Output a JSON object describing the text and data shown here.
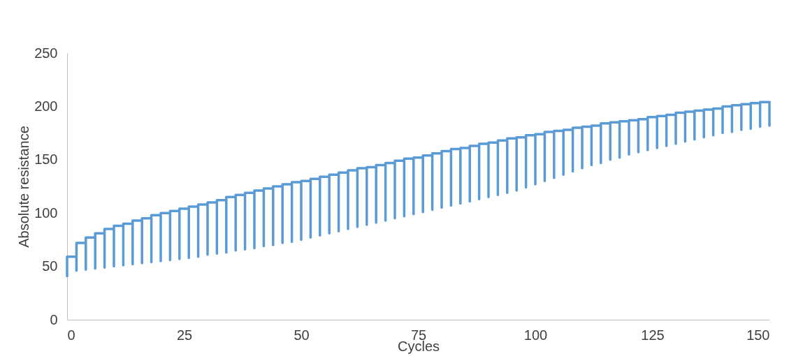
{
  "chart_data": {
    "type": "step",
    "xlabel": "Cycles",
    "ylabel": "Absolute resistance",
    "xlim": [
      0,
      150
    ],
    "xticks": [
      0,
      25,
      50,
      75,
      100,
      125,
      150
    ],
    "ylim": [
      0,
      250
    ],
    "yticks": [
      0,
      50,
      100,
      150,
      200,
      250
    ],
    "grid": false,
    "marker": "none",
    "line_style": "solid",
    "series": [
      {
        "color": "#5b9bd5",
        "x": [
          0,
          0,
          2,
          2,
          4,
          4,
          6,
          6,
          8,
          8,
          10,
          10,
          12,
          12,
          14,
          14,
          16,
          16,
          18,
          18,
          20,
          20,
          22,
          22,
          24,
          24,
          26,
          26,
          28,
          28,
          30,
          30,
          32,
          32,
          34,
          34,
          36,
          36,
          38,
          38,
          40,
          40,
          42,
          42,
          44,
          44,
          46,
          46,
          48,
          48,
          50,
          50,
          52,
          52,
          54,
          54,
          56,
          56,
          58,
          58,
          60,
          60,
          62,
          62,
          64,
          64,
          66,
          66,
          68,
          68,
          70,
          70,
          72,
          72,
          74,
          74,
          76,
          76,
          78,
          78,
          80,
          80,
          82,
          82,
          84,
          84,
          86,
          86,
          88,
          88,
          90,
          90,
          92,
          92,
          94,
          94,
          96,
          96,
          98,
          98,
          100,
          100,
          102,
          102,
          104,
          104,
          106,
          106,
          108,
          108,
          110,
          110,
          112,
          112,
          114,
          114,
          116,
          116,
          118,
          118,
          120,
          120,
          122,
          122,
          124,
          124,
          126,
          126,
          128,
          128,
          130,
          130,
          132,
          132,
          134,
          134,
          136,
          136,
          138,
          138,
          140,
          140,
          142,
          142,
          144,
          144,
          146,
          146,
          148,
          148,
          150,
          150
        ],
        "values": [
          40,
          59,
          46,
          72,
          47,
          77,
          48,
          81,
          49,
          85,
          50,
          88,
          51,
          90,
          52,
          93,
          53,
          95,
          54,
          98,
          55,
          100,
          56,
          102,
          57,
          104,
          58,
          106,
          59,
          108,
          61,
          110,
          62,
          112,
          63,
          115,
          65,
          117,
          66,
          119,
          67,
          121,
          69,
          123,
          70,
          125,
          72,
          127,
          73,
          129,
          75,
          130,
          77,
          132,
          79,
          134,
          81,
          136,
          83,
          138,
          85,
          140,
          87,
          142,
          89,
          143,
          91,
          145,
          93,
          147,
          95,
          149,
          97,
          151,
          99,
          152,
          101,
          154,
          103,
          156,
          105,
          158,
          107,
          160,
          109,
          161,
          111,
          163,
          113,
          165,
          115,
          166,
          117,
          168,
          119,
          170,
          121,
          171,
          124,
          173,
          127,
          174,
          130,
          176,
          133,
          177,
          136,
          178,
          139,
          180,
          142,
          181,
          145,
          182,
          147,
          184,
          150,
          185,
          152,
          186,
          155,
          187,
          157,
          188,
          159,
          190,
          161,
          191,
          163,
          192,
          165,
          194,
          167,
          195,
          169,
          196,
          171,
          197,
          173,
          198,
          175,
          200,
          176,
          201,
          178,
          202,
          179,
          203,
          181,
          204,
          182,
          205
        ]
      }
    ]
  }
}
